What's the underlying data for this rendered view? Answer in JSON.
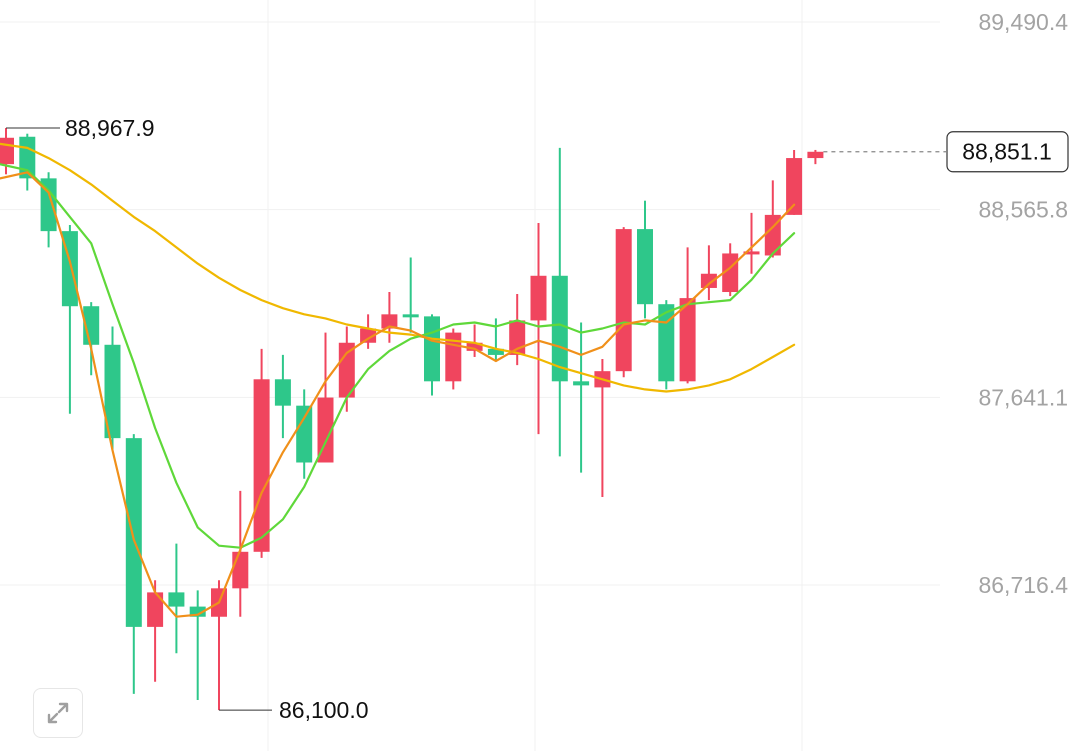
{
  "chart_data": {
    "type": "candlestick",
    "y_ticks": [
      "89,490.4",
      "88,565.8",
      "87,641.1",
      "86,716.4"
    ],
    "y_tick_values": [
      89490.4,
      88565.8,
      87641.1,
      86716.4
    ],
    "current_price": 88851.1,
    "current_price_label": "88,851.1",
    "high_marker": {
      "value": 88967.9,
      "label": "88,967.9"
    },
    "low_marker": {
      "value": 86100.0,
      "label": "86,100.0"
    },
    "grid": true,
    "colors": {
      "up": "#f0455e",
      "down": "#2ec78a",
      "ma_fast": "#f0901a",
      "ma_mid": "#5fd83a",
      "ma_slow": "#f0b800",
      "axis_text": "#a3a3a3",
      "grid": "#f1f1f1"
    },
    "candles": [
      {
        "open": 88790,
        "close": 88920,
        "high": 88968,
        "low": 88740
      },
      {
        "open": 88925,
        "close": 88720,
        "high": 88940,
        "low": 88660
      },
      {
        "open": 88720,
        "close": 88460,
        "high": 88750,
        "low": 88380
      },
      {
        "open": 88460,
        "close": 88090,
        "high": 88490,
        "low": 87560
      },
      {
        "open": 88090,
        "close": 87900,
        "high": 88110,
        "low": 87750
      },
      {
        "open": 87900,
        "close": 87440,
        "high": 87990,
        "low": 87380
      },
      {
        "open": 87440,
        "close": 86510,
        "high": 87460,
        "low": 86180
      },
      {
        "open": 86510,
        "close": 86680,
        "high": 86740,
        "low": 86240
      },
      {
        "open": 86680,
        "close": 86610,
        "high": 86920,
        "low": 86380
      },
      {
        "open": 86610,
        "close": 86560,
        "high": 86690,
        "low": 86150
      },
      {
        "open": 86560,
        "close": 86700,
        "high": 86740,
        "low": 86100
      },
      {
        "open": 86700,
        "close": 86880,
        "high": 87180,
        "low": 86560
      },
      {
        "open": 86880,
        "close": 87730,
        "high": 87880,
        "low": 86850
      },
      {
        "open": 87730,
        "close": 87600,
        "high": 87850,
        "low": 87440
      },
      {
        "open": 87600,
        "close": 87320,
        "high": 87680,
        "low": 87240
      },
      {
        "open": 87320,
        "close": 87640,
        "high": 87960,
        "low": 87330
      },
      {
        "open": 87640,
        "close": 87910,
        "high": 87990,
        "low": 87570
      },
      {
        "open": 87910,
        "close": 87980,
        "high": 88050,
        "low": 87880
      },
      {
        "open": 87980,
        "close": 88050,
        "high": 88160,
        "low": 87910
      },
      {
        "open": 88050,
        "close": 88040,
        "high": 88330,
        "low": 87960
      },
      {
        "open": 88040,
        "close": 87720,
        "high": 88050,
        "low": 87650
      },
      {
        "open": 87720,
        "close": 87960,
        "high": 87980,
        "low": 87680
      },
      {
        "open": 87870,
        "close": 87910,
        "high": 88000,
        "low": 87840
      },
      {
        "open": 87880,
        "close": 87850,
        "high": 88030,
        "low": 87820
      },
      {
        "open": 87850,
        "close": 88020,
        "high": 88150,
        "low": 87800
      },
      {
        "open": 88020,
        "close": 88240,
        "high": 88500,
        "low": 87460
      },
      {
        "open": 88240,
        "close": 87720,
        "high": 88870,
        "low": 87350
      },
      {
        "open": 87720,
        "close": 87700,
        "high": 88010,
        "low": 87270
      },
      {
        "open": 87690,
        "close": 87770,
        "high": 87830,
        "low": 87150
      },
      {
        "open": 87770,
        "close": 88470,
        "high": 88480,
        "low": 87740
      },
      {
        "open": 88470,
        "close": 88100,
        "high": 88610,
        "low": 88030
      },
      {
        "open": 88100,
        "close": 87720,
        "high": 88120,
        "low": 87680
      },
      {
        "open": 87720,
        "close": 88130,
        "high": 88380,
        "low": 87710
      },
      {
        "open": 88180,
        "close": 88250,
        "high": 88390,
        "low": 88120
      },
      {
        "open": 88160,
        "close": 88350,
        "high": 88400,
        "low": 88140
      },
      {
        "open": 88350,
        "close": 88360,
        "high": 88550,
        "low": 88250
      },
      {
        "open": 88340,
        "close": 88540,
        "high": 88710,
        "low": 88330
      },
      {
        "open": 88540,
        "close": 88820,
        "high": 88860,
        "low": 88540
      },
      {
        "open": 88820,
        "close": 88851,
        "high": 88860,
        "low": 88790
      }
    ],
    "ma_fast": [
      88720,
      88750,
      88650,
      88310,
      87880,
      87380,
      86940,
      86680,
      86560,
      86570,
      86630,
      86890,
      87170,
      87370,
      87540,
      87720,
      87860,
      87930,
      87990,
      87970,
      87920,
      87900,
      87880,
      87820,
      87880,
      87920,
      87890,
      87850,
      87890,
      88000,
      88020,
      88010,
      88100,
      88200,
      88280,
      88380,
      88480,
      88590
    ],
    "ma_mid": [
      88790,
      88760,
      88660,
      88530,
      88400,
      88100,
      87810,
      87490,
      87220,
      87000,
      86910,
      86900,
      86950,
      87040,
      87200,
      87420,
      87640,
      87780,
      87870,
      87930,
      87960,
      88000,
      88010,
      87990,
      88020,
      87990,
      88000,
      87960,
      87980,
      88010,
      88000,
      88060,
      88100,
      88110,
      88120,
      88220,
      88350,
      88450
    ],
    "ma_slow": [
      88890,
      88870,
      88820,
      88760,
      88690,
      88610,
      88530,
      88460,
      88380,
      88300,
      88230,
      88170,
      88120,
      88080,
      88050,
      88030,
      88000,
      87980,
      87960,
      87950,
      87930,
      87920,
      87910,
      87880,
      87860,
      87830,
      87790,
      87760,
      87730,
      87700,
      87680,
      87670,
      87680,
      87700,
      87730,
      87780,
      87840,
      87900
    ]
  },
  "ui": {
    "expand_icon": "expand-arrows-icon"
  }
}
